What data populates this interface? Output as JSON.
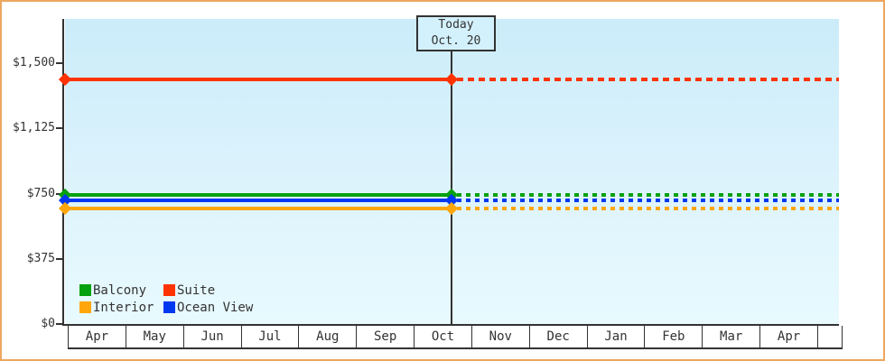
{
  "frame": {
    "border_color": "#eda75f",
    "background_color": "#ffffff",
    "plot_gradient_top": "#cbecfa",
    "plot_gradient_bottom": "#e8fafe",
    "axis_color": "#333333"
  },
  "chart_data": {
    "type": "line",
    "title": "",
    "xlabel": "",
    "ylabel": "",
    "categories": [
      "Apr",
      "May",
      "Jun",
      "Jul",
      "Aug",
      "Sep",
      "Oct",
      "Nov",
      "Dec",
      "Jan",
      "Feb",
      "Mar",
      "Apr"
    ],
    "y_axis": {
      "tick_labels": [
        "$0",
        "$375",
        "$750",
        "$1,125",
        "$1,500"
      ],
      "tick_values": [
        0,
        375,
        750,
        1125,
        1500
      ],
      "ylim": [
        0,
        1755
      ],
      "unit": "USD",
      "grid": false
    },
    "series": [
      {
        "name": "Suite",
        "color": "#ff3300",
        "value": 1410,
        "values": [
          1410,
          1410,
          1410,
          1410,
          1410,
          1410,
          1410,
          1410,
          1410,
          1410,
          1410,
          1410,
          1410
        ]
      },
      {
        "name": "Balcony",
        "color": "#06a10f",
        "value": 745,
        "values": [
          745,
          745,
          745,
          745,
          745,
          745,
          745,
          745,
          745,
          745,
          745,
          745,
          745
        ]
      },
      {
        "name": "Ocean View",
        "color": "#0038f0",
        "value": 710,
        "values": [
          710,
          710,
          710,
          710,
          710,
          710,
          710,
          710,
          710,
          710,
          710,
          710,
          710
        ]
      },
      {
        "name": "Interior",
        "color": "#ffa60a",
        "value": 665,
        "values": [
          665,
          665,
          665,
          665,
          665,
          665,
          665,
          665,
          665,
          665,
          665,
          665,
          665
        ]
      }
    ],
    "today": {
      "label": "Today",
      "date": "Oct. 20",
      "month": "Oct",
      "month_fraction": 0.65
    },
    "style": {
      "solid_before_today": true,
      "dashed_after_today": true,
      "markers": "diamond at line start and at today"
    },
    "legend": {
      "position": "bottom-left",
      "rows": [
        [
          "Balcony",
          "Suite"
        ],
        [
          "Interior",
          "Ocean View"
        ]
      ]
    }
  }
}
